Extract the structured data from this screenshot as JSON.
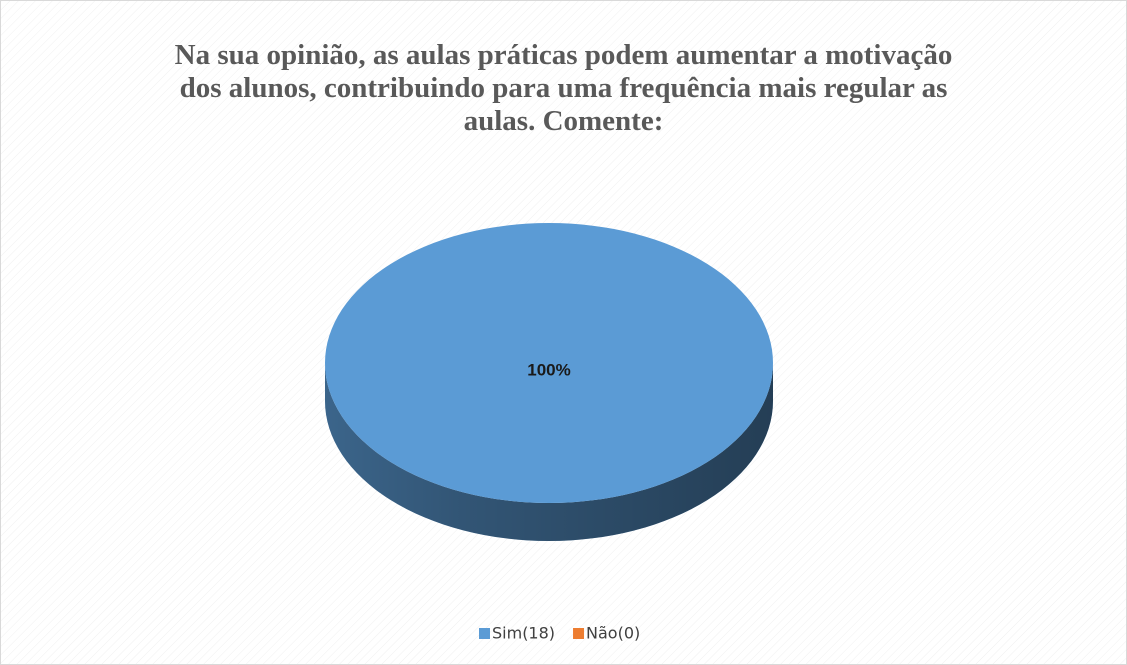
{
  "chart_data": {
    "type": "pie",
    "title": "Na sua opinião, as aulas práticas podem aumentar a motivação dos alunos, contribuindo para uma frequência mais regular as aulas. Comente:",
    "categories": [
      "Sim(18)",
      "Não(0)"
    ],
    "values": [
      100,
      0
    ],
    "value_labels": [
      "100%",
      null
    ],
    "colors": [
      "#5b9bd5",
      "#ed7d31"
    ],
    "legend": "bottom"
  }
}
